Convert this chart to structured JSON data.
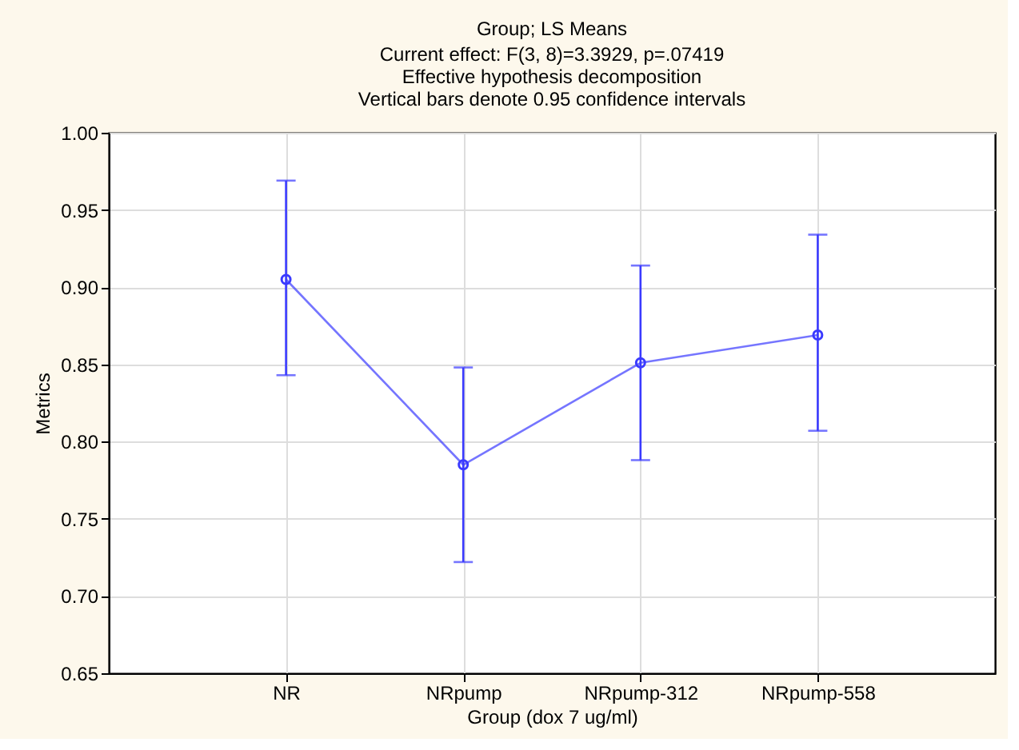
{
  "chart_data": {
    "type": "line",
    "title": "Group; LS Means",
    "subtitle": "Current effect: F(3, 8)=3.3929, p=.07419\nEffective hypothesis decomposition\nVertical bars denote 0.95 confidence intervals",
    "xlabel": "Group (dox 7 ug/ml)",
    "ylabel": "Metrics",
    "categories": [
      "NR",
      "NRpump",
      "NRpump-312",
      "NRpump-558"
    ],
    "series": [
      {
        "color": "#3a3aff",
        "values": [
          0.905,
          0.785,
          0.851,
          0.869
        ],
        "errors": [
          [
            0.843,
            0.969
          ],
          [
            0.722,
            0.848
          ],
          [
            0.788,
            0.914
          ],
          [
            0.807,
            0.934
          ]
        ]
      }
    ],
    "ylim": [
      0.65,
      1.0
    ],
    "yticks": [
      {
        "value": 0.65,
        "label": "0.65"
      },
      {
        "value": 0.7,
        "label": "0.70"
      },
      {
        "value": 0.75,
        "label": "0.75"
      },
      {
        "value": 0.8,
        "label": "0.80"
      },
      {
        "value": 0.85,
        "label": "0.85"
      },
      {
        "value": 0.9,
        "label": "0.90"
      },
      {
        "value": 0.95,
        "label": "0.95"
      },
      {
        "value": 1.0,
        "label": "1.00"
      }
    ],
    "grid": true,
    "marker": "circle",
    "line_style": "solid"
  }
}
